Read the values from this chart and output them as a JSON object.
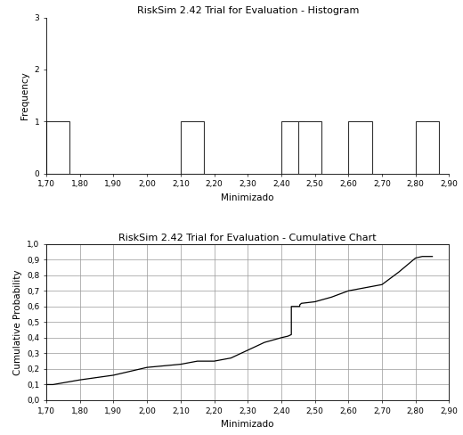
{
  "hist_title": "RiskSim 2.42 Trial for Evaluation - Histogram",
  "cum_title": "RiskSim 2.42 Trial for Evaluation - Cumulative Chart",
  "xlabel": "Minimizado",
  "hist_ylabel": "Frequency",
  "cum_ylabel": "Cumulative Probability",
  "xmin": 1.7,
  "xmax": 2.9,
  "xticks": [
    1.7,
    1.8,
    1.9,
    2.0,
    2.1,
    2.2,
    2.3,
    2.4,
    2.5,
    2.6,
    2.7,
    2.8,
    2.9
  ],
  "xtick_labels": [
    "1,70",
    "1,80",
    "1,90",
    "2,00",
    "2,10",
    "2,20",
    "2,30",
    "2,40",
    "2,50",
    "2,60",
    "2,70",
    "2,80",
    "2,90"
  ],
  "hist_yticks": [
    0,
    1,
    2,
    3
  ],
  "hist_ylim": [
    0,
    3
  ],
  "cum_yticks": [
    0.0,
    0.1,
    0.2,
    0.3,
    0.4,
    0.5,
    0.6,
    0.7,
    0.8,
    0.9,
    1.0
  ],
  "cum_ytick_labels": [
    "0,0",
    "0,1",
    "0,2",
    "0,3",
    "0,4",
    "0,5",
    "0,6",
    "0,7",
    "0,8",
    "0,9",
    "1,0"
  ],
  "cum_ylim": [
    0.0,
    1.0
  ],
  "bar_edges": [
    1.7,
    2.1,
    2.4,
    2.45,
    2.6,
    2.8
  ],
  "bar_widths": [
    0.07,
    0.07,
    0.07,
    0.07,
    0.07,
    0.07
  ],
  "bar_heights": [
    1,
    1,
    1,
    1,
    1,
    1
  ],
  "cum_x": [
    1.7,
    1.72,
    1.8,
    1.9,
    2.0,
    2.05,
    2.1,
    2.15,
    2.2,
    2.25,
    2.3,
    2.35,
    2.4,
    2.42,
    2.43,
    2.43,
    2.455,
    2.455,
    2.46,
    2.5,
    2.55,
    2.6,
    2.65,
    2.7,
    2.75,
    2.8,
    2.82,
    2.85
  ],
  "cum_y": [
    0.1,
    0.1,
    0.13,
    0.16,
    0.21,
    0.22,
    0.23,
    0.25,
    0.25,
    0.27,
    0.32,
    0.37,
    0.4,
    0.41,
    0.42,
    0.6,
    0.6,
    0.61,
    0.62,
    0.63,
    0.66,
    0.7,
    0.72,
    0.74,
    0.82,
    0.91,
    0.92,
    0.92
  ],
  "line_color": "#000000",
  "bar_color": "#ffffff",
  "bar_edge_color": "#333333",
  "bg_color": "#ffffff",
  "grid_color": "#999999",
  "title_fontsize": 8,
  "label_fontsize": 7.5,
  "tick_fontsize": 6.5
}
